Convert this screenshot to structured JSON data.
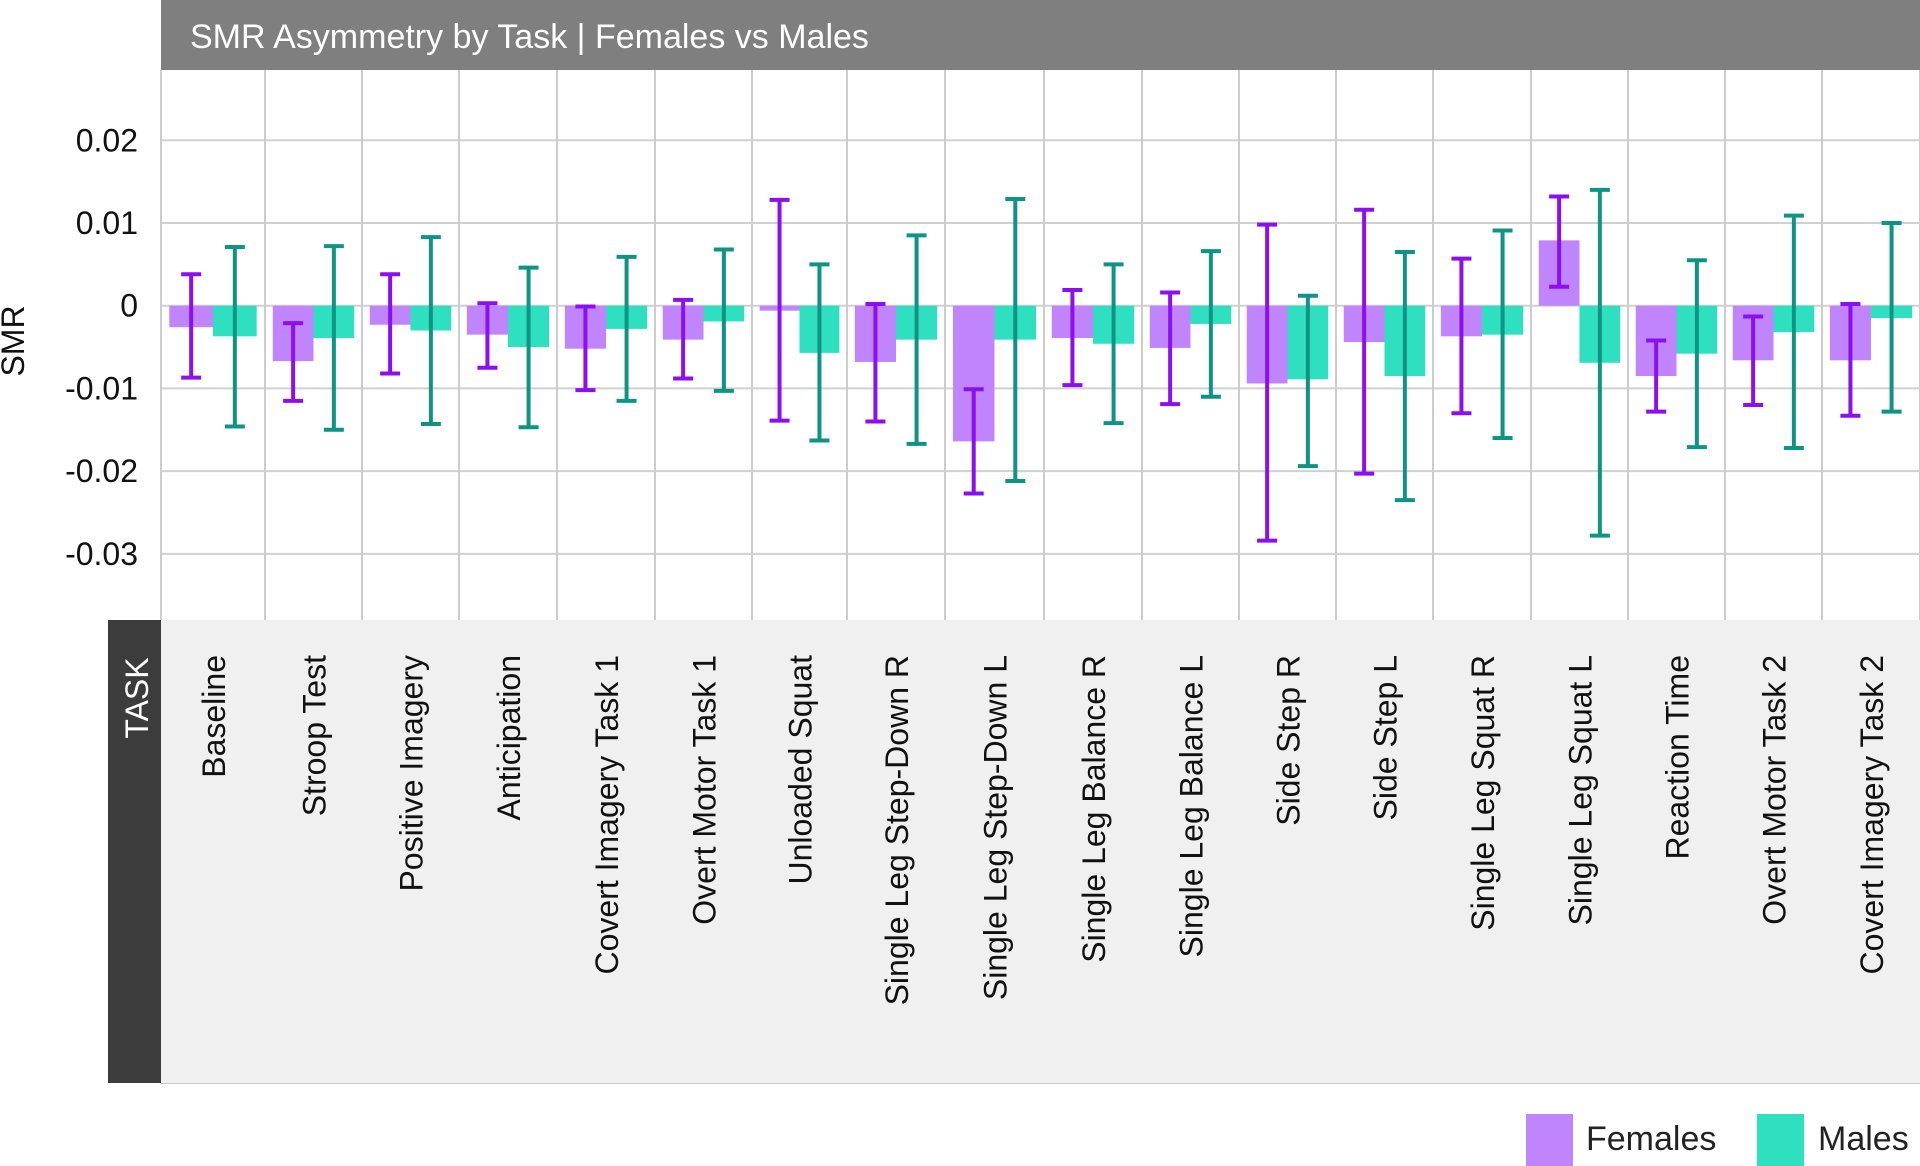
{
  "chart_data": {
    "type": "bar",
    "title": "SMR Asymmetry by Task | Females vs Males",
    "ylabel": "SMR",
    "xlabel": "TASK",
    "ylim": [
      -0.038,
      0.0285
    ],
    "yticks": [
      0.02,
      0.01,
      0,
      -0.01,
      -0.02,
      -0.03
    ],
    "ytick_labels": [
      "0.02",
      "0.01",
      "0",
      "-0.01",
      "-0.02",
      "-0.03"
    ],
    "grid": true,
    "legend_position": "bottom-right",
    "categories": [
      "Baseline",
      "Stroop  Test",
      "Positive Imagery",
      "Anticipation",
      "Covert Imagery Task 1",
      "Overt Motor Task 1",
      "Unloaded Squat",
      "Single Leg Step-Down R",
      "Single Leg Step-Down L",
      "Single Leg Balance R",
      "Single Leg Balance L",
      "Side Step R",
      "Side Step L",
      "Single Leg Squat R",
      "Single Leg Squat L",
      "Reaction Time",
      "Overt Motor Task 2",
      "Covert Imagery Task 2"
    ],
    "series": [
      {
        "name": "Females",
        "color": "#c084fc",
        "error_color": "#8b0ff0",
        "values": [
          -0.0026,
          -0.0067,
          -0.0023,
          -0.0035,
          -0.0052,
          -0.0041,
          -0.0006,
          -0.0068,
          -0.0164,
          -0.0039,
          -0.0051,
          -0.0094,
          -0.0044,
          -0.0037,
          0.0079,
          -0.0085,
          -0.0066,
          -0.0066
        ],
        "error_low": [
          -0.0087,
          -0.0115,
          -0.0082,
          -0.0075,
          -0.0102,
          -0.0088,
          -0.0139,
          -0.014,
          -0.0227,
          -0.0096,
          -0.0119,
          -0.0284,
          -0.0203,
          -0.013,
          0.0023,
          -0.0128,
          -0.012,
          -0.0133
        ],
        "error_high": [
          0.0038,
          -0.0021,
          0.0038,
          0.0003,
          -0.0001,
          0.0007,
          0.0128,
          0.0002,
          -0.0101,
          0.0019,
          0.0016,
          0.0098,
          0.0116,
          0.0057,
          0.0132,
          -0.0042,
          -0.0013,
          0.0002
        ]
      },
      {
        "name": "Males",
        "color": "#2ee0c0",
        "error_color": "#0f9484",
        "values": [
          -0.0037,
          -0.0039,
          -0.003,
          -0.005,
          -0.0028,
          -0.0019,
          -0.0057,
          -0.0041,
          -0.0041,
          -0.0046,
          -0.0022,
          -0.0089,
          -0.0085,
          -0.0035,
          -0.0069,
          -0.0058,
          -0.0032,
          -0.0015
        ],
        "error_low": [
          -0.0146,
          -0.015,
          -0.0143,
          -0.0147,
          -0.0115,
          -0.0103,
          -0.0163,
          -0.0167,
          -0.0212,
          -0.0142,
          -0.011,
          -0.0194,
          -0.0235,
          -0.016,
          -0.0278,
          -0.0171,
          -0.0172,
          -0.0128
        ],
        "error_high": [
          0.0071,
          0.0072,
          0.0083,
          0.0046,
          0.0059,
          0.0068,
          0.005,
          0.0085,
          0.0129,
          0.005,
          0.0066,
          0.0012,
          0.0065,
          0.0091,
          0.014,
          0.0055,
          0.0109,
          0.01
        ]
      }
    ]
  }
}
